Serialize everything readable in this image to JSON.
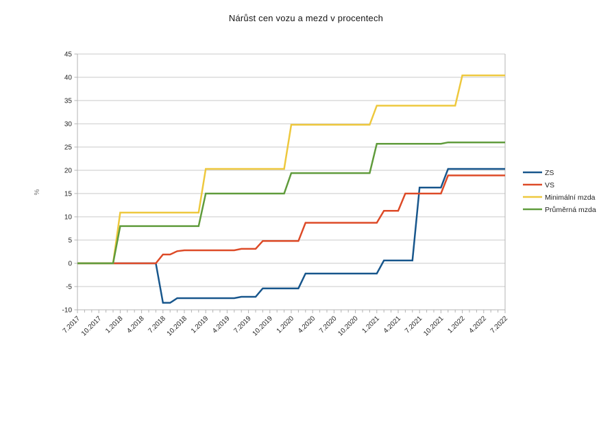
{
  "chart_data": {
    "type": "line",
    "title": "Nárůst cen vozu a mezd v procentech",
    "ylabel": "%",
    "ylim": [
      -10,
      45
    ],
    "ytick_step": 5,
    "grid": "horizontal-only",
    "legend_position": "right",
    "x_label_every": 3,
    "x": [
      "7.2017",
      "8.2017",
      "9.2017",
      "10.2017",
      "11.2017",
      "12.2017",
      "1.2018",
      "2.2018",
      "3.2018",
      "4.2018",
      "5.2018",
      "6.2018",
      "7.2018",
      "8.2018",
      "9.2018",
      "10.2018",
      "11.2018",
      "12.2018",
      "1.2019",
      "2.2019",
      "3.2019",
      "4.2019",
      "5.2019",
      "6.2019",
      "7.2019",
      "8.2019",
      "9.2019",
      "10.2019",
      "11.2019",
      "12.2019",
      "1.2020",
      "2.2020",
      "3.2020",
      "4.2020",
      "5.2020",
      "6.2020",
      "7.2020",
      "8.2020",
      "9.2020",
      "10.2020",
      "11.2020",
      "12.2020",
      "1.2021",
      "2.2021",
      "3.2021",
      "4.2021",
      "5.2021",
      "6.2021",
      "7.2021",
      "8.2021",
      "9.2021",
      "10.2021",
      "11.2021",
      "12.2021",
      "1.2022",
      "2.2022",
      "3.2022",
      "4.2022",
      "5.2022",
      "6.2022",
      "7.2022"
    ],
    "series": [
      {
        "name": "ZS",
        "color": "#17568c",
        "values": [
          0,
          0,
          0,
          0,
          0,
          0,
          0,
          0,
          0,
          0,
          0,
          0,
          -8.5,
          -8.5,
          -7.5,
          -7.5,
          -7.5,
          -7.5,
          -7.5,
          -7.5,
          -7.5,
          -7.5,
          -7.5,
          -7.2,
          -7.2,
          -7.2,
          -5.4,
          -5.4,
          -5.4,
          -5.4,
          -5.4,
          -5.4,
          -2.2,
          -2.2,
          -2.2,
          -2.2,
          -2.2,
          -2.2,
          -2.2,
          -2.2,
          -2.2,
          -2.2,
          -2.2,
          0.6,
          0.6,
          0.6,
          0.6,
          0.6,
          16.3,
          16.3,
          16.3,
          16.3,
          20.3,
          20.3,
          20.3,
          20.3,
          20.3,
          20.3,
          20.3,
          20.3,
          20.3
        ]
      },
      {
        "name": "VS",
        "color": "#dd4a27",
        "values": [
          0,
          0,
          0,
          0,
          0,
          0,
          0,
          0,
          0,
          0,
          0,
          0,
          1.9,
          1.9,
          2.6,
          2.8,
          2.8,
          2.8,
          2.8,
          2.8,
          2.8,
          2.8,
          2.8,
          3.1,
          3.1,
          3.1,
          4.8,
          4.8,
          4.8,
          4.8,
          4.8,
          4.8,
          8.7,
          8.7,
          8.7,
          8.7,
          8.7,
          8.7,
          8.7,
          8.7,
          8.7,
          8.7,
          8.7,
          11.3,
          11.3,
          11.3,
          15,
          15,
          15,
          15,
          15,
          15,
          18.9,
          18.9,
          18.9,
          18.9,
          18.9,
          18.9,
          18.9,
          18.9,
          18.9
        ]
      },
      {
        "name": "Minimální mzda",
        "color": "#eec83d",
        "values": [
          0,
          0,
          0,
          0,
          0,
          0,
          10.9,
          10.9,
          10.9,
          10.9,
          10.9,
          10.9,
          10.9,
          10.9,
          10.9,
          10.9,
          10.9,
          10.9,
          20.3,
          20.3,
          20.3,
          20.3,
          20.3,
          20.3,
          20.3,
          20.3,
          20.3,
          20.3,
          20.3,
          20.3,
          29.8,
          29.8,
          29.8,
          29.8,
          29.8,
          29.8,
          29.8,
          29.8,
          29.8,
          29.8,
          29.8,
          29.8,
          33.9,
          33.9,
          33.9,
          33.9,
          33.9,
          33.9,
          33.9,
          33.9,
          33.9,
          33.9,
          33.9,
          33.9,
          40.4,
          40.4,
          40.4,
          40.4,
          40.4,
          40.4,
          40.4
        ]
      },
      {
        "name": "Průměrná mzda",
        "color": "#5f9b3b",
        "values": [
          0,
          0,
          0,
          0,
          0,
          0,
          8,
          8,
          8,
          8,
          8,
          8,
          8,
          8,
          8,
          8,
          8,
          8,
          15,
          15,
          15,
          15,
          15,
          15,
          15,
          15,
          15,
          15,
          15,
          15,
          19.4,
          19.4,
          19.4,
          19.4,
          19.4,
          19.4,
          19.4,
          19.4,
          19.4,
          19.4,
          19.4,
          19.4,
          25.7,
          25.7,
          25.7,
          25.7,
          25.7,
          25.7,
          25.7,
          25.7,
          25.7,
          25.7,
          26,
          26,
          26,
          26,
          26,
          26,
          26,
          26,
          26
        ]
      }
    ]
  }
}
